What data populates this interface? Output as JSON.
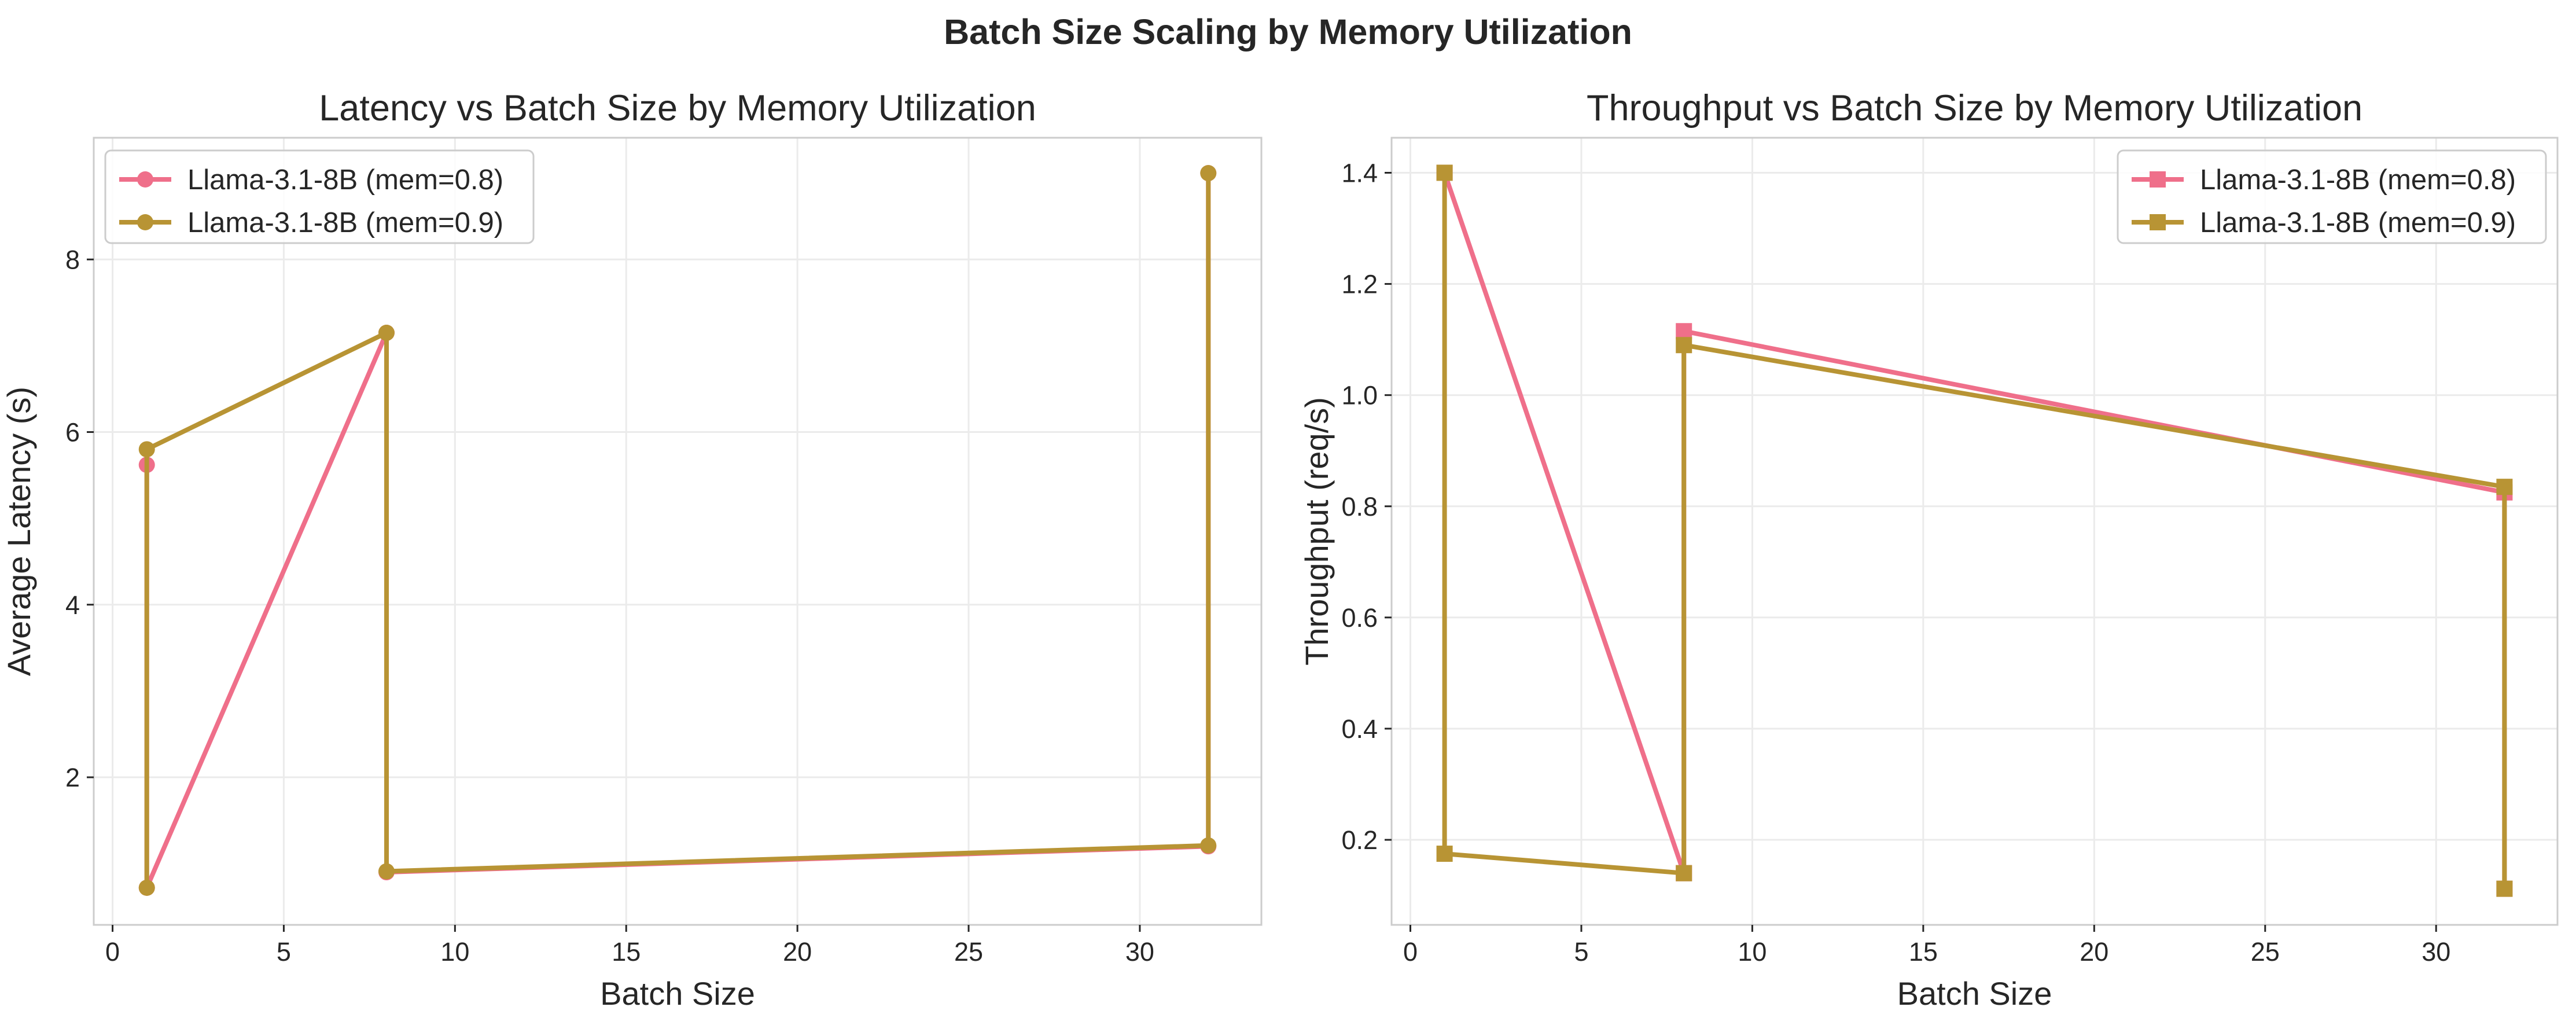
{
  "figure": {
    "title": "Batch Size Scaling by Memory Utilization"
  },
  "colors": {
    "series_mem08": "#ef6f8a",
    "series_mem09": "#b89434",
    "grid": "#ebebeb",
    "frame": "#cccccc",
    "text": "#262626"
  },
  "chart_data": [
    {
      "type": "line",
      "title": "Latency vs Batch Size by Memory Utilization",
      "xlabel": "Batch Size",
      "ylabel": "Average Latency (s)",
      "xlim": [
        -0.55,
        33.55
      ],
      "ylim": [
        0.29,
        9.41
      ],
      "xticks": [
        0,
        5,
        10,
        15,
        20,
        25,
        30
      ],
      "yticks": [
        2,
        4,
        6,
        8
      ],
      "grid": true,
      "legend_position": "upper left",
      "marker": "circle",
      "series": [
        {
          "name": "Llama-3.1-8B (mem=0.8)",
          "color_key": "series_mem08",
          "points": [
            [
              1,
              5.62
            ],
            [
              1,
              0.72
            ],
            [
              8,
              7.15
            ],
            [
              8,
              0.9
            ],
            [
              32,
              1.2
            ],
            [
              32,
              9.0
            ]
          ]
        },
        {
          "name": "Llama-3.1-8B (mem=0.9)",
          "color_key": "series_mem09",
          "points": [
            [
              1,
              0.72
            ],
            [
              1,
              5.8
            ],
            [
              8,
              7.15
            ],
            [
              8,
              0.91
            ],
            [
              32,
              1.21
            ],
            [
              32,
              9.0
            ]
          ]
        }
      ]
    },
    {
      "type": "line",
      "title": "Throughput vs Batch Size by Memory Utilization",
      "xlabel": "Batch Size",
      "ylabel": "Throughput (req/s)",
      "xlim": [
        -0.55,
        33.55
      ],
      "ylim": [
        0.047,
        1.463
      ],
      "xticks": [
        0,
        5,
        10,
        15,
        20,
        25,
        30
      ],
      "yticks": [
        0.2,
        0.4,
        0.6,
        0.8,
        1.0,
        1.2,
        1.4
      ],
      "grid": true,
      "legend_position": "upper right",
      "marker": "square",
      "series": [
        {
          "name": "Llama-3.1-8B (mem=0.8)",
          "color_key": "series_mem08",
          "points": [
            [
              1,
              1.4
            ],
            [
              8,
              0.14
            ],
            [
              8,
              1.115
            ],
            [
              32,
              0.825
            ],
            [
              32,
              0.112
            ]
          ]
        },
        {
          "name": "Llama-3.1-8B (mem=0.9)",
          "color_key": "series_mem09",
          "points": [
            [
              1,
              1.4
            ],
            [
              1,
              0.175
            ],
            [
              8,
              0.14
            ],
            [
              8,
              1.09
            ],
            [
              32,
              0.835
            ],
            [
              32,
              0.112
            ]
          ]
        }
      ]
    }
  ]
}
